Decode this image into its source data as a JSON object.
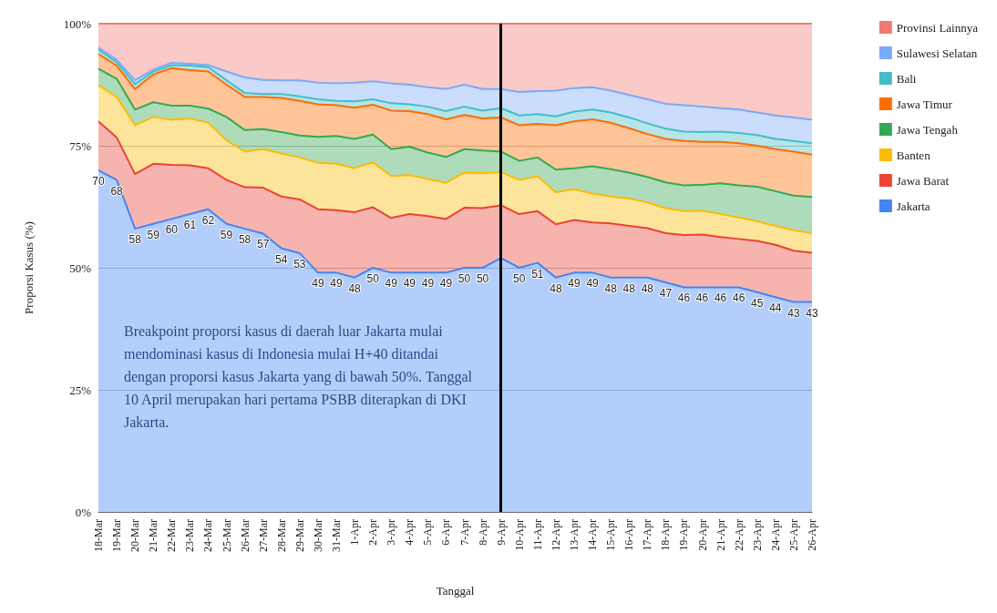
{
  "chart_data": {
    "type": "area",
    "stacked": true,
    "xlabel": "Tanggal",
    "ylabel": "Proporsi Kasus (%)",
    "categories": [
      "18-Mar",
      "19-Mar",
      "20-Mar",
      "21-Mar",
      "22-Mar",
      "23-Mar",
      "24-Mar",
      "25-Mar",
      "26-Mar",
      "27-Mar",
      "28-Mar",
      "29-Mar",
      "30-Mar",
      "31-Mar",
      "1-Apr",
      "2-Apr",
      "3-Apr",
      "4-Apr",
      "5-Apr",
      "6-Apr",
      "7-Apr",
      "8-Apr",
      "9-Apr",
      "10-Apr",
      "11-Apr",
      "12-Apr",
      "13-Apr",
      "14-Apr",
      "15-Apr",
      "16-Apr",
      "17-Apr",
      "18-Apr",
      "19-Apr",
      "20-Apr",
      "21-Apr",
      "22-Apr",
      "23-Apr",
      "24-Apr",
      "25-Apr",
      "26-Apr"
    ],
    "series": [
      {
        "name": "Jakarta",
        "color": "#4285f4",
        "values": [
          70,
          68,
          58,
          59,
          60,
          61,
          62,
          59,
          58,
          57,
          54,
          53,
          49,
          49,
          48,
          50,
          49,
          49,
          49,
          49,
          50,
          50,
          52,
          50,
          51,
          48,
          49,
          49,
          48,
          48,
          48,
          47,
          46,
          46,
          46,
          46,
          45,
          44,
          43,
          43
        ],
        "value_labels": [
          "70",
          "68",
          "58",
          "59",
          "60",
          "61",
          "62",
          "59",
          "58",
          "57",
          "54",
          "53",
          "49",
          "49",
          "48",
          "50",
          "49",
          "49",
          "49",
          "49",
          "50",
          "50",
          null,
          "50",
          "51",
          "48",
          "49",
          "49",
          "48",
          "48",
          "48",
          "47",
          "46",
          "46",
          "46",
          "46",
          "45",
          "44",
          "43",
          "43"
        ]
      },
      {
        "name": "Jawa Barat",
        "color": "#ea4335",
        "values": [
          10,
          8.7,
          11.2,
          12.3,
          11.1,
          10,
          8.4,
          9,
          8.5,
          9.4,
          10.6,
          11,
          13,
          12.8,
          13.4,
          12.4,
          11.2,
          12,
          11.6,
          11,
          12.3,
          12.2,
          10.8,
          11,
          10.6,
          10.9,
          10.8,
          10.3,
          11.1,
          10.6,
          10.1,
          10.1,
          10.7,
          10.8,
          10.3,
          9.9,
          10.5,
          10.7,
          10.5,
          10.1
        ]
      },
      {
        "name": "Banten",
        "color": "#fbbc04",
        "values": [
          7.4,
          8.3,
          10,
          9.6,
          9.2,
          9.6,
          9.3,
          8.1,
          7.3,
          7.9,
          8.8,
          8.6,
          9.5,
          9.5,
          9,
          9.2,
          8.6,
          8,
          7.6,
          7.4,
          7.2,
          7.2,
          6.8,
          7,
          7.1,
          6.6,
          6.3,
          5.9,
          5.5,
          5.6,
          5.3,
          5.1,
          4.9,
          4.9,
          4.7,
          4.4,
          4,
          3.9,
          4.2,
          4
        ]
      },
      {
        "name": "Jawa Tengah",
        "color": "#34a853",
        "values": [
          3.4,
          3.7,
          3.2,
          3,
          2.9,
          2.6,
          2.9,
          4.8,
          4.4,
          4.1,
          4.4,
          4.5,
          5.3,
          5.7,
          6,
          5.7,
          5.5,
          5.8,
          5.4,
          5.3,
          4.8,
          4.6,
          4.2,
          3.9,
          3.9,
          4.6,
          4.3,
          5.6,
          5.6,
          5.3,
          5.2,
          5.3,
          5.3,
          5.3,
          6.3,
          6.6,
          7.1,
          7.1,
          7.1,
          7.4
        ]
      },
      {
        "name": "Jawa Timur",
        "color": "#ff6d01",
        "values": [
          3,
          2.7,
          4.2,
          5.7,
          7.7,
          7.3,
          7.6,
          6.6,
          6.8,
          6.6,
          7,
          7.1,
          6.7,
          6.3,
          6.4,
          6.1,
          7.9,
          7.3,
          7.9,
          7.7,
          7,
          6.6,
          7,
          7.3,
          6.9,
          9.1,
          9.6,
          9.6,
          9.5,
          9.1,
          8.8,
          8.9,
          9.1,
          8.8,
          8.5,
          8.6,
          8.4,
          8.6,
          9,
          8.7
        ]
      },
      {
        "name": "Bali",
        "color": "#46bdc6",
        "values": [
          0.9,
          0.7,
          1,
          0.6,
          0.6,
          0.9,
          0.9,
          0.9,
          0.8,
          0.6,
          0.8,
          0.9,
          1,
          0.9,
          1.3,
          1.1,
          1.5,
          1.4,
          1.5,
          1.7,
          1.7,
          1.6,
          1.9,
          2,
          2,
          1.8,
          2,
          2,
          2.1,
          2.2,
          2.2,
          2.1,
          1.9,
          2,
          2.1,
          2.1,
          2.2,
          2.1,
          2.2,
          2.3
        ]
      },
      {
        "name": "Sulawesi Selatan",
        "color": "#7baaf7",
        "values": [
          0.4,
          0.5,
          0.8,
          0.4,
          0.5,
          0.4,
          0.4,
          1.8,
          3.2,
          2.9,
          2.8,
          3.3,
          3.4,
          3.6,
          3.8,
          3.7,
          4.1,
          4,
          4,
          4.5,
          4.5,
          4.4,
          3.9,
          4.8,
          4.7,
          5.3,
          4.8,
          4.6,
          4.5,
          4.6,
          4.9,
          5.1,
          5.4,
          5.2,
          4.8,
          4.8,
          4.6,
          4.8,
          4.8,
          4.8
        ]
      },
      {
        "name": "Provinsi Lainnya",
        "color": "#f07b72",
        "values": [
          4.9,
          7.4,
          11.6,
          9.4,
          8,
          8.2,
          8.5,
          9.8,
          11,
          11.5,
          11.6,
          11.6,
          12.1,
          12.2,
          12.1,
          11.8,
          12.2,
          12.5,
          13,
          13.4,
          12.5,
          13.4,
          13.4,
          14,
          13.8,
          13.7,
          13.2,
          13,
          13.7,
          14.6,
          15.5,
          16.4,
          16.7,
          17,
          17.3,
          17.6,
          18.2,
          18.8,
          19.2,
          19.7
        ]
      }
    ],
    "ylim": [
      0,
      100
    ],
    "yticks": [
      {
        "value": 0,
        "label": "0%"
      },
      {
        "value": 25,
        "label": "25%"
      },
      {
        "value": 50,
        "label": "50%"
      },
      {
        "value": 75,
        "label": "75%"
      },
      {
        "value": 100,
        "label": "100%"
      }
    ],
    "grid": "y",
    "legend": "right",
    "ref_lines": [
      {
        "axis": "x",
        "value": "9-Apr",
        "label": null,
        "color": "#000000"
      }
    ],
    "annotations": [
      "Breakpoint proporsi kasus di daerah luar Jakarta mulai mendominasi kasus di Indonesia mulai H+40 ditandai dengan proporsi kasus Jakarta yang di bawah 50%. Tanggal 10 April merupakan hari pertama PSBB diterapkan di DKI Jakarta."
    ]
  }
}
